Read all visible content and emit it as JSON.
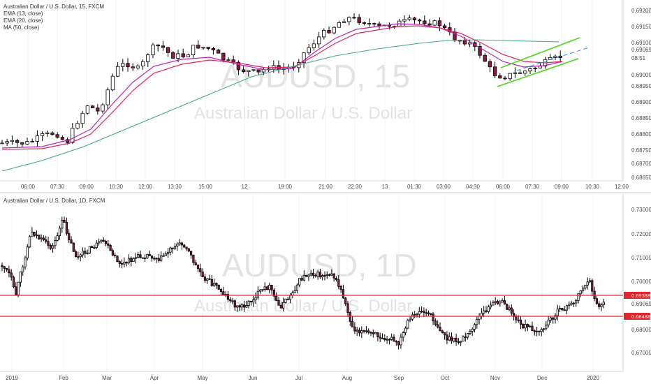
{
  "panels": [
    {
      "title": "Australian Dollar / U.S. Dollar, 15, FXCM",
      "indicators": [
        "EMA (13, close)",
        "EMA (20, close)",
        "MA (50, close)"
      ],
      "watermark_symbol": "AUDUSD, 15",
      "watermark_name": "Australian Dollar / U.S. Dollar",
      "time_labels": [
        "06:00",
        "07:30",
        "09:00",
        "10:30",
        "12:00",
        "13:30",
        "15:00",
        "12",
        "19:00",
        "21:00",
        "22:30",
        "13",
        "01:30",
        "03:00",
        "04:30",
        "06:00",
        "07:30",
        "09:00",
        "10:30",
        "12:00"
      ],
      "price_labels": [
        "0.69200",
        "0.69150",
        "0.69100",
        "0.69000",
        "0.68950",
        "0.68900",
        "0.68850",
        "0.68800",
        "0.68750",
        "0.68700",
        "0.68650"
      ],
      "last_price": "0.69069",
      "countdown": "08:51"
    },
    {
      "title": "Australian Dollar / U.S. Dollar, 1D, FXCM",
      "watermark_symbol": "AUDUSD, 1D",
      "watermark_name": "Australian Dollar / U.S. Dollar",
      "time_labels": [
        "2019",
        "Feb",
        "Mar",
        "Apr",
        "May",
        "Jun",
        "Jul",
        "Aug",
        "Sep",
        "Oct",
        "Nov",
        "Dec",
        "2020"
      ],
      "price_labels": [
        "0.73000",
        "0.72000",
        "0.71000",
        "0.70000",
        "0.68000",
        "0.67000"
      ],
      "last_price": "0.69069",
      "level_labels": [
        "0.69388",
        "0.68488"
      ]
    }
  ],
  "colors": {
    "up": "#ffffff",
    "down": "#8b1a3f",
    "candle_border": "#000000",
    "ema13": "#b726b7",
    "ema20": "#e0215e",
    "ma50": "#3fa680",
    "channel": "#4cd417",
    "channel_dashed": "#2f8ef0",
    "level": "#e3262a"
  },
  "chart_data": [
    {
      "type": "candlestick",
      "symbol": "AUDUSD",
      "interval": "15",
      "series": [
        {
          "name": "EMA (13, close)"
        },
        {
          "name": "EMA (20, close)"
        },
        {
          "name": "MA (50, close)"
        }
      ],
      "ylim": [
        0.6865,
        0.6922
      ],
      "annotations": [
        "ascending channel",
        "dashed projection line"
      ]
    },
    {
      "type": "candlestick",
      "symbol": "AUDUSD",
      "interval": "1D",
      "ylim": [
        0.664,
        0.7325
      ],
      "horizontal_levels": [
        0.69388,
        0.68488
      ]
    }
  ]
}
